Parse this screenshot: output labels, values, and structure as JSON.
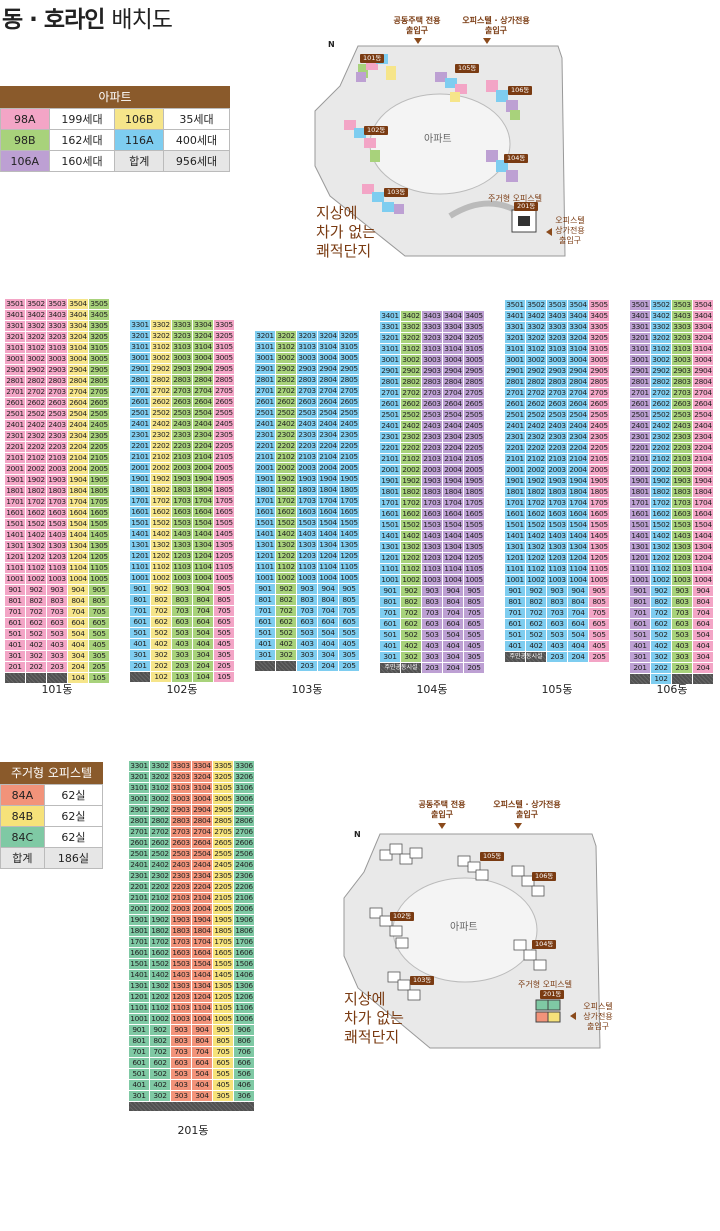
{
  "title": {
    "strong": "동 · 호라인",
    "light": "배치도"
  },
  "colors": {
    "98A": "#f3a5c6",
    "98B": "#a8d27b",
    "106A": "#bda0d3",
    "106B": "#f6e58a",
    "116A": "#7ecdf0",
    "84A": "#f2937a",
    "84B": "#f6e27a",
    "84C": "#7fc9a4",
    "blank": "#515151"
  },
  "apt_summary": {
    "header": "아파트",
    "rows": [
      [
        {
          "type": "98A",
          "count": "199세대"
        },
        {
          "type": "106B",
          "count": "35세대"
        }
      ],
      [
        {
          "type": "98B",
          "count": "162세대"
        },
        {
          "type": "116A",
          "count": "400세대"
        }
      ],
      [
        {
          "type": "106A",
          "count": "160세대"
        },
        {
          "type": "합계",
          "count": "956세대"
        }
      ]
    ]
  },
  "office_summary": {
    "header": "주거형 오피스텔",
    "rows": [
      {
        "type": "84A",
        "count": "62실"
      },
      {
        "type": "84B",
        "count": "62실"
      },
      {
        "type": "84C",
        "count": "62실"
      },
      {
        "type": "합계",
        "count": "186실"
      }
    ]
  },
  "map": {
    "gate1": "공동주택 전용\n출입구",
    "gate2": "오피스텔 · 상가전용\n출입구",
    "gate3": "오피스텔\n상가전용\n출입구",
    "slogan": "지상에\n차가 없는\n쾌적단지",
    "apt_label": "아파트",
    "office_tag": "주거형 오피스텔",
    "north": "N",
    "bldgs": [
      "101동",
      "102동",
      "103동",
      "104동",
      "105동",
      "106동",
      "201동"
    ]
  },
  "buildings": [
    {
      "name": "101동",
      "top_floor": 35,
      "low_floor": 2,
      "lines": [
        1,
        2,
        3,
        4,
        5
      ],
      "colors": [
        "98A",
        "98A",
        "98A",
        "106B",
        "98B"
      ],
      "first_row": [
        "35",
        "35",
        "35",
        "35",
        "35"
      ],
      "extra_bottom": [
        "",
        "",
        "",
        "104",
        "105"
      ],
      "hatch_label": ""
    },
    {
      "name": "102동",
      "top_floor": 33,
      "low_floor": 2,
      "lines": [
        1,
        2,
        3,
        4,
        5
      ],
      "colors": [
        "116A",
        "106B",
        "98B",
        "98B",
        "98A"
      ],
      "extra_bottom": [
        "",
        "102",
        "103",
        "104",
        "105"
      ],
      "hatch_label": ""
    },
    {
      "name": "103동",
      "top_floor": 32,
      "low_floor": 3,
      "lines": [
        1,
        2,
        3,
        4,
        5
      ],
      "colors": [
        "116A",
        "98B",
        "116A",
        "116A",
        "116A"
      ],
      "extra_bottom": [
        "",
        "",
        "203",
        "204",
        "205"
      ],
      "hatch_label": ""
    },
    {
      "name": "104동",
      "top_floor": 34,
      "low_floor": 3,
      "lines": [
        1,
        2,
        3,
        4,
        5
      ],
      "colors": [
        "116A",
        "98B",
        "106A",
        "106A",
        "106A"
      ],
      "extra_bottom": [
        "",
        "",
        "203",
        "204",
        "205"
      ],
      "hatch_label": "주민공동시설"
    },
    {
      "name": "105동",
      "top_floor": 35,
      "low_floor": 4,
      "lines": [
        1,
        2,
        3,
        4,
        5
      ],
      "colors": [
        "116A",
        "116A",
        "116A",
        "116A",
        "98A"
      ],
      "extra_bottom": [
        "",
        "",
        "203",
        "204",
        "205"
      ],
      "hatch_label": "주민공동시설"
    },
    {
      "name": "106동",
      "top_floor": 35,
      "low_floor": 2,
      "lines": [
        1,
        2,
        3,
        4
      ],
      "colors": [
        "106A",
        "116A",
        "98B",
        "98A"
      ],
      "extra_bottom": [
        "",
        "102",
        "",
        ""
      ],
      "hatch_label": ""
    },
    {
      "name": "201동",
      "top_floor": 33,
      "low_floor": 3,
      "lines": [
        1,
        2,
        3,
        4,
        5,
        6
      ],
      "colors": [
        "84C",
        "84C",
        "84A",
        "84A",
        "84B",
        "84C"
      ],
      "extra_bottom": [],
      "hatch_label": ""
    }
  ]
}
